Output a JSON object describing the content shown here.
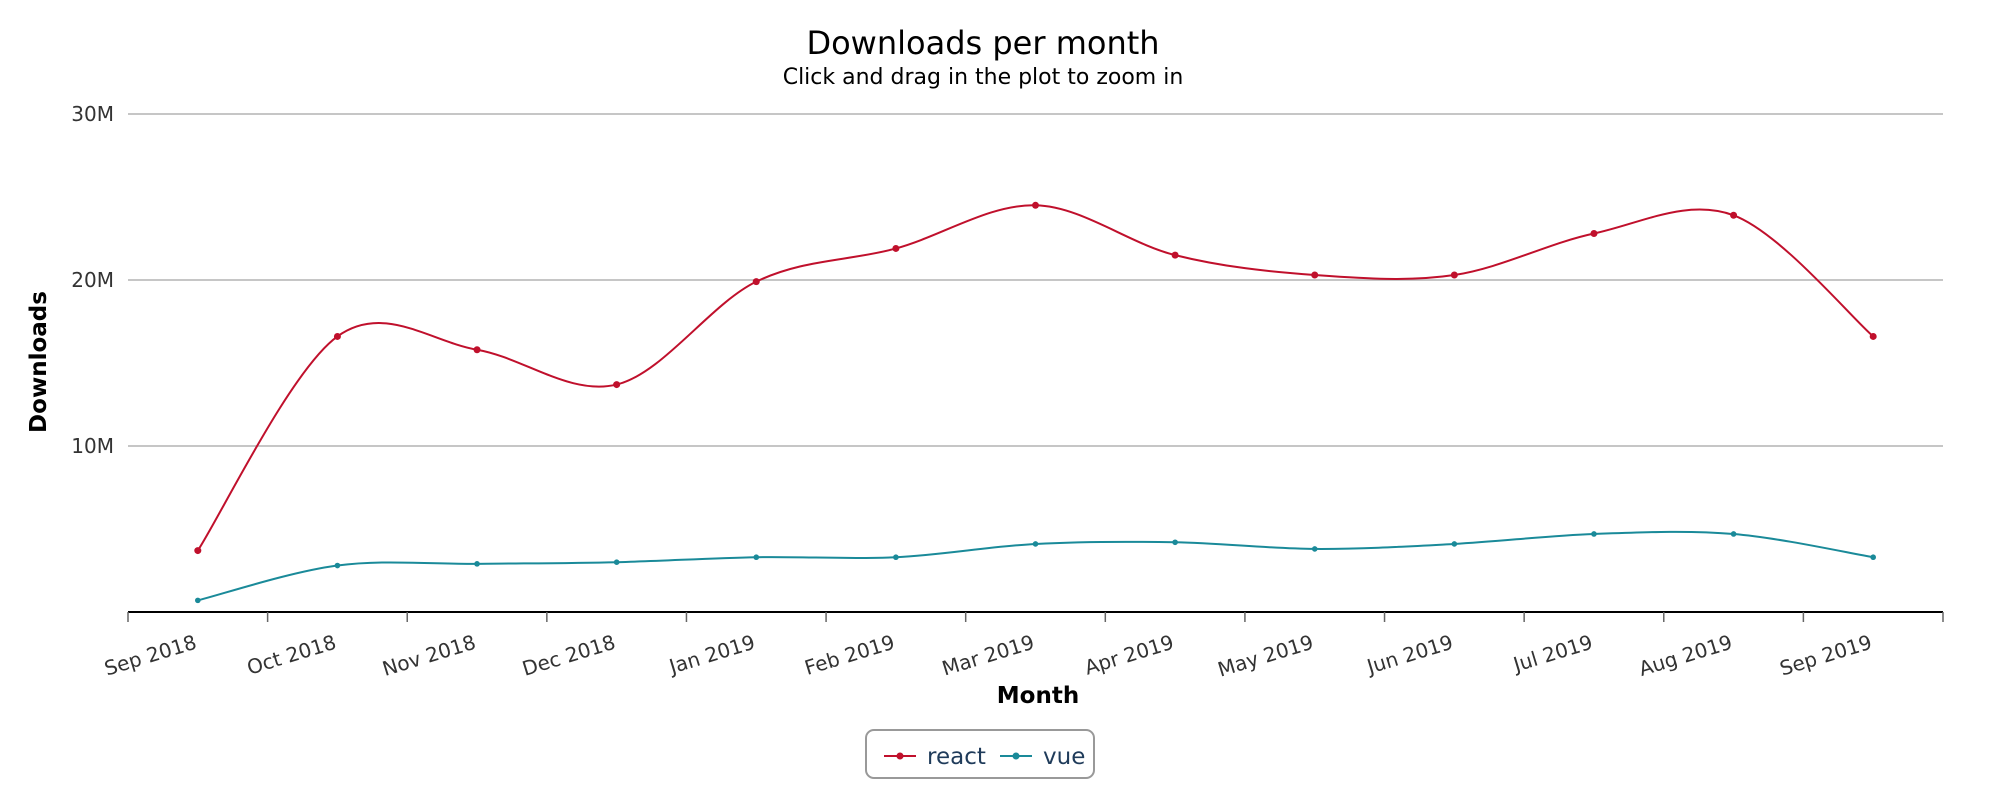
{
  "chart_data": {
    "type": "line",
    "title": "Downloads per month",
    "subtitle": "Click and drag in the plot to zoom in",
    "xlabel": "Month",
    "ylabel": "Downloads",
    "categories": [
      "Sep 2018",
      "Oct 2018",
      "Nov 2018",
      "Dec 2018",
      "Jan 2019",
      "Feb 2019",
      "Mar 2019",
      "Apr 2019",
      "May 2019",
      "Jun 2019",
      "Jul 2019",
      "Aug 2019",
      "Sep 2019"
    ],
    "ylim": [
      0,
      30000000
    ],
    "yticks": [
      10000000,
      20000000,
      30000000
    ],
    "ytick_labels": [
      "10M",
      "20M",
      "30M"
    ],
    "grid": true,
    "legend_position": "bottom-center",
    "series": [
      {
        "name": "react",
        "color": "#c0102c",
        "values": [
          3700000,
          16600000,
          15800000,
          13700000,
          19900000,
          21900000,
          24500000,
          21500000,
          20300000,
          20300000,
          22800000,
          23900000,
          16600000
        ]
      },
      {
        "name": "vue",
        "color": "#1a8a99",
        "values": [
          700000,
          2800000,
          2900000,
          3000000,
          3300000,
          3300000,
          4100000,
          4200000,
          3800000,
          4100000,
          4700000,
          4700000,
          3300000
        ]
      }
    ]
  }
}
